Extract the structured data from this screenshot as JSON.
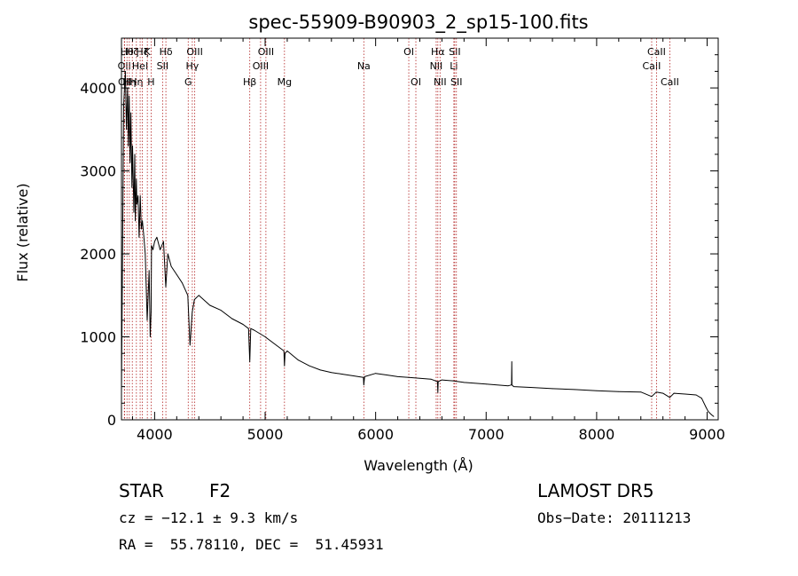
{
  "chart_data": {
    "type": "line",
    "title": "spec-55909-B90903_2_sp15-100.fits",
    "xlabel": "Wavelength (Å)",
    "ylabel": "Flux (relative)",
    "xlim": [
      3700,
      9100
    ],
    "ylim": [
      0,
      4600
    ],
    "xticks": [
      {
        "v": 4000,
        "label": "4000"
      },
      {
        "v": 5000,
        "label": "5000"
      },
      {
        "v": 6000,
        "label": "6000"
      },
      {
        "v": 7000,
        "label": "7000"
      },
      {
        "v": 8000,
        "label": "8000"
      },
      {
        "v": 9000,
        "label": "9000"
      }
    ],
    "yticks": [
      {
        "v": 0,
        "label": "0"
      },
      {
        "v": 1000,
        "label": "1000"
      },
      {
        "v": 2000,
        "label": "2000"
      },
      {
        "v": 3000,
        "label": "3000"
      },
      {
        "v": 4000,
        "label": "4000"
      }
    ],
    "grid": false,
    "line_color": "#000000",
    "marker_color": "#b22222",
    "series": [
      {
        "x": [
          3700,
          3720,
          3735,
          3745,
          3755,
          3762,
          3770,
          3778,
          3785,
          3795,
          3800,
          3812,
          3820,
          3825,
          3835,
          3840,
          3850,
          3860,
          3870,
          3880,
          3889,
          3900,
          3915,
          3933,
          3950,
          3960,
          3968,
          3972,
          3985,
          4000,
          4020,
          4050,
          4080,
          4101,
          4120,
          4150,
          4200,
          4250,
          4300,
          4320,
          4340,
          4360,
          4400,
          4500,
          4600,
          4700,
          4800,
          4850,
          4861,
          4870,
          4900,
          5000,
          5100,
          5170,
          5175,
          5180,
          5200,
          5300,
          5400,
          5500,
          5600,
          5700,
          5800,
          5890,
          5893,
          5900,
          6000,
          6100,
          6200,
          6300,
          6400,
          6500,
          6560,
          6563,
          6566,
          6600,
          6700,
          6800,
          7000,
          7200,
          7230,
          7232,
          7234,
          7250,
          7400,
          7600,
          7800,
          8000,
          8200,
          8400,
          8498,
          8540,
          8600,
          8662,
          8700,
          8800,
          8900,
          8950,
          8990,
          9010,
          9040,
          9060
        ],
        "y": [
          350,
          3800,
          4200,
          3500,
          4000,
          3300,
          3900,
          3100,
          3700,
          2800,
          3300,
          2500,
          3200,
          2400,
          2900,
          2600,
          2700,
          2200,
          2700,
          2300,
          2400,
          2250,
          2000,
          1200,
          1800,
          1000,
          1300,
          2100,
          2050,
          2150,
          2200,
          2050,
          2150,
          1600,
          2000,
          1850,
          1750,
          1650,
          1500,
          900,
          1300,
          1450,
          1500,
          1380,
          1320,
          1220,
          1150,
          1100,
          700,
          1100,
          1080,
          1000,
          900,
          830,
          650,
          800,
          830,
          720,
          650,
          600,
          570,
          550,
          530,
          510,
          420,
          520,
          560,
          540,
          520,
          510,
          500,
          490,
          460,
          330,
          460,
          480,
          470,
          450,
          430,
          410,
          420,
          700,
          420,
          400,
          390,
          375,
          365,
          350,
          340,
          335,
          280,
          335,
          320,
          270,
          320,
          310,
          300,
          260,
          150,
          100,
          60,
          40
        ]
      }
    ],
    "line_markers": [
      {
        "x": 3726,
        "label": "OII",
        "row": 2
      },
      {
        "x": 3729,
        "label": "OII",
        "row": 3
      },
      {
        "x": 3750,
        "label": "Hθ",
        "row": 1
      },
      {
        "x": 3771,
        "label": "Hη",
        "row": 3
      },
      {
        "x": 3798,
        "label": "Hζ",
        "row": 1
      },
      {
        "x": 3835,
        "label": "Hη",
        "row": 3
      },
      {
        "x": 3869,
        "label": "HeI",
        "row": 2
      },
      {
        "x": 3889,
        "label": "Hζ",
        "row": 1
      },
      {
        "x": 3934,
        "label": "K",
        "row": 1
      },
      {
        "x": 3968,
        "label": "H",
        "row": 3
      },
      {
        "x": 4072,
        "label": "SII",
        "row": 2
      },
      {
        "x": 4102,
        "label": "Hδ",
        "row": 1
      },
      {
        "x": 4304,
        "label": "G",
        "row": 3
      },
      {
        "x": 4341,
        "label": "Hγ",
        "row": 2
      },
      {
        "x": 4363,
        "label": "OIII",
        "row": 1
      },
      {
        "x": 4861,
        "label": "Hβ",
        "row": 3
      },
      {
        "x": 4959,
        "label": "OIII",
        "row": 2
      },
      {
        "x": 5007,
        "label": "OIII",
        "row": 1
      },
      {
        "x": 5175,
        "label": "Mg",
        "row": 3
      },
      {
        "x": 5893,
        "label": "Na",
        "row": 2
      },
      {
        "x": 6300,
        "label": "OI",
        "row": 1
      },
      {
        "x": 6364,
        "label": "OI",
        "row": 3
      },
      {
        "x": 6548,
        "label": "NII",
        "row": 2
      },
      {
        "x": 6563,
        "label": "Hα",
        "row": 1
      },
      {
        "x": 6583,
        "label": "NII",
        "row": 3
      },
      {
        "x": 6708,
        "label": "Li",
        "row": 2
      },
      {
        "x": 6716,
        "label": "SII",
        "row": 1
      },
      {
        "x": 6731,
        "label": "SII",
        "row": 3
      },
      {
        "x": 8498,
        "label": "CaII",
        "row": 2
      },
      {
        "x": 8542,
        "label": "CaII",
        "row": 1
      },
      {
        "x": 8662,
        "label": "CaII",
        "row": 3
      }
    ]
  },
  "info": {
    "object_class": "STAR",
    "subclass": "F2",
    "survey": "LAMOST DR5",
    "velocity": "cz = −12.1 ± 9.3 km/s",
    "obs_date": "Obs−Date: 20111213",
    "coords": "RA =  55.78110, DEC =  51.45931"
  }
}
